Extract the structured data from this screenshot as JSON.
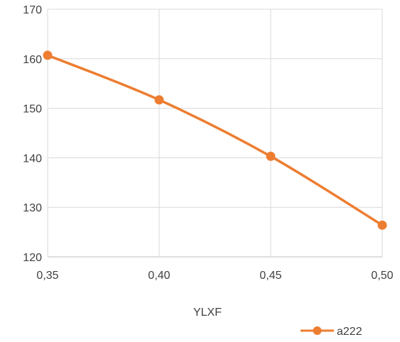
{
  "chart_data": {
    "type": "line",
    "title": "",
    "xlabel": "YLXF",
    "ylabel": "",
    "x": [
      0.35,
      0.4,
      0.45,
      0.5
    ],
    "x_tick_labels": [
      "0,35",
      "0,40",
      "0,45",
      "0,50"
    ],
    "y_tick_values": [
      120,
      130,
      140,
      150,
      160,
      170
    ],
    "y_tick_labels": [
      "120",
      "130",
      "140",
      "150",
      "160",
      "170"
    ],
    "xlim": [
      0.35,
      0.5
    ],
    "ylim": [
      120,
      170
    ],
    "grid": "both",
    "legend_position": "bottom-right",
    "series": [
      {
        "name": "a222",
        "color": "#ED7D31",
        "marker": "circle",
        "smooth": true,
        "values": [
          160.7,
          151.7,
          140.3,
          126.4
        ]
      }
    ]
  }
}
